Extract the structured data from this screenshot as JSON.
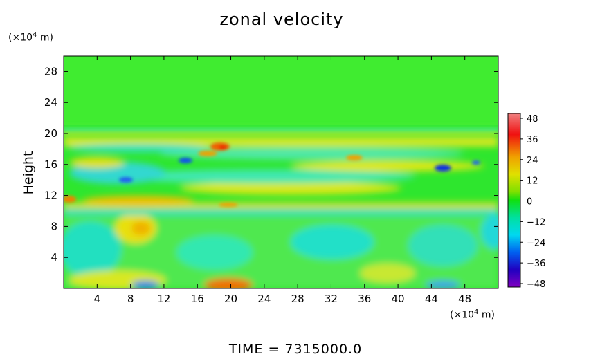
{
  "chart_data": {
    "type": "heatmap",
    "title": "zonal velocity",
    "ylabel": "Height",
    "y_unit": {
      "prefix": "(×10",
      "exp": "4",
      "suffix": " m)"
    },
    "x_unit": {
      "prefix": "(×10",
      "exp": "4",
      "suffix": " m)"
    },
    "xlim": [
      0,
      52
    ],
    "ylim": [
      0,
      30
    ],
    "xticks": [
      4,
      8,
      12,
      16,
      20,
      24,
      28,
      32,
      36,
      40,
      44,
      48
    ],
    "yticks": [
      4,
      8,
      12,
      16,
      20,
      24,
      28
    ],
    "colorbar": {
      "ticks": [
        48,
        36,
        24,
        12,
        0,
        -12,
        -24,
        -36,
        -48
      ],
      "min": -48,
      "max": 48
    },
    "footer": "TIME  =  7315000.0"
  }
}
